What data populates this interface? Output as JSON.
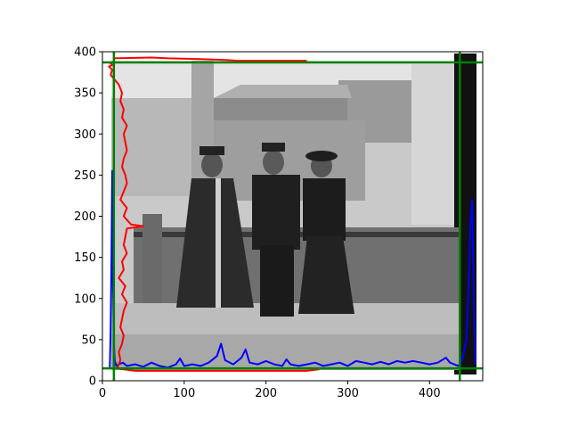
{
  "chart_data": {
    "type": "line",
    "title": "",
    "xlabel": "",
    "ylabel": "",
    "xlim": [
      0,
      465
    ],
    "ylim": [
      0,
      400
    ],
    "x_ticks": [
      0,
      100,
      200,
      300,
      400
    ],
    "y_ticks": [
      0,
      50,
      100,
      150,
      200,
      250,
      300,
      350,
      400
    ],
    "grid": false,
    "background_image": "grayscale vintage photograph of three people standing in front of an iron fence and buildings",
    "series": [
      {
        "color": "#0000ff",
        "orientation": "column profile plotted along x (y = value)",
        "points": [
          [
            9,
            15
          ],
          [
            10,
            60
          ],
          [
            11,
            140
          ],
          [
            12,
            255
          ],
          [
            13,
            120
          ],
          [
            14,
            45
          ],
          [
            15,
            25
          ],
          [
            17,
            18
          ],
          [
            20,
            20
          ],
          [
            25,
            22
          ],
          [
            30,
            18
          ],
          [
            40,
            20
          ],
          [
            50,
            17
          ],
          [
            60,
            22
          ],
          [
            70,
            18
          ],
          [
            80,
            16
          ],
          [
            90,
            20
          ],
          [
            95,
            27
          ],
          [
            100,
            18
          ],
          [
            110,
            20
          ],
          [
            120,
            18
          ],
          [
            130,
            22
          ],
          [
            140,
            30
          ],
          [
            145,
            45
          ],
          [
            150,
            25
          ],
          [
            160,
            20
          ],
          [
            170,
            28
          ],
          [
            175,
            38
          ],
          [
            180,
            22
          ],
          [
            190,
            20
          ],
          [
            200,
            24
          ],
          [
            210,
            20
          ],
          [
            220,
            18
          ],
          [
            225,
            26
          ],
          [
            230,
            20
          ],
          [
            240,
            18
          ],
          [
            250,
            20
          ],
          [
            260,
            22
          ],
          [
            270,
            18
          ],
          [
            280,
            20
          ],
          [
            290,
            22
          ],
          [
            300,
            18
          ],
          [
            310,
            24
          ],
          [
            320,
            22
          ],
          [
            330,
            20
          ],
          [
            340,
            23
          ],
          [
            350,
            20
          ],
          [
            360,
            24
          ],
          [
            370,
            22
          ],
          [
            380,
            24
          ],
          [
            390,
            22
          ],
          [
            400,
            20
          ],
          [
            410,
            22
          ],
          [
            420,
            28
          ],
          [
            425,
            22
          ],
          [
            430,
            20
          ],
          [
            435,
            18
          ],
          [
            440,
            25
          ],
          [
            445,
            50
          ],
          [
            448,
            120
          ],
          [
            450,
            190
          ],
          [
            452,
            220
          ],
          [
            454,
            100
          ],
          [
            456,
            20
          ]
        ]
      },
      {
        "color": "#ff0000",
        "orientation": "row profile plotted along y (x = value)",
        "points": [
          [
            12,
            388
          ],
          [
            10,
            386
          ],
          [
            12,
            384
          ],
          [
            8,
            382
          ],
          [
            12,
            378
          ],
          [
            10,
            372
          ],
          [
            20,
            360
          ],
          [
            24,
            350
          ],
          [
            22,
            340
          ],
          [
            26,
            330
          ],
          [
            24,
            320
          ],
          [
            30,
            310
          ],
          [
            26,
            300
          ],
          [
            28,
            290
          ],
          [
            30,
            280
          ],
          [
            26,
            270
          ],
          [
            24,
            260
          ],
          [
            28,
            250
          ],
          [
            30,
            240
          ],
          [
            26,
            230
          ],
          [
            22,
            220
          ],
          [
            30,
            210
          ],
          [
            26,
            200
          ],
          [
            35,
            190
          ],
          [
            50,
            188
          ],
          [
            30,
            185
          ],
          [
            28,
            175
          ],
          [
            26,
            165
          ],
          [
            30,
            155
          ],
          [
            24,
            145
          ],
          [
            26,
            135
          ],
          [
            20,
            125
          ],
          [
            28,
            115
          ],
          [
            24,
            105
          ],
          [
            30,
            95
          ],
          [
            26,
            85
          ],
          [
            24,
            75
          ],
          [
            22,
            65
          ],
          [
            26,
            55
          ],
          [
            24,
            45
          ],
          [
            20,
            35
          ],
          [
            22,
            25
          ],
          [
            18,
            15
          ],
          [
            40,
            12
          ],
          [
            150,
            12
          ],
          [
            250,
            12
          ],
          [
            265,
            14
          ]
        ]
      },
      {
        "color": "#ff0000",
        "orientation": "top spike along row",
        "points": [
          [
            14,
            392
          ],
          [
            60,
            393
          ],
          [
            80,
            392
          ],
          [
            120,
            391
          ],
          [
            150,
            390
          ],
          [
            165,
            389
          ],
          [
            180,
            389
          ],
          [
            230,
            389
          ],
          [
            250,
            389
          ]
        ]
      }
    ],
    "reference_lines": {
      "color": "#008000",
      "horizontal_y": [
        15,
        387
      ],
      "vertical_x": [
        14,
        437
      ]
    }
  }
}
